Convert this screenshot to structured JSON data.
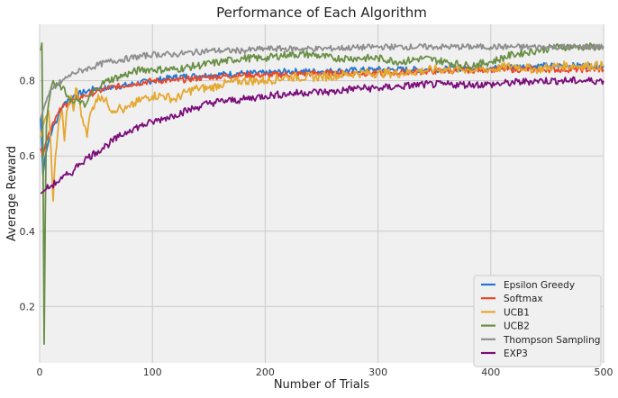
{
  "chart_data": {
    "type": "line",
    "title": "Performance of Each Algorithm",
    "xlabel": "Number of Trials",
    "ylabel": "Average Reward",
    "xlim": [
      0,
      500
    ],
    "ylim": [
      0.05,
      0.95
    ],
    "xticks": [
      0,
      100,
      200,
      300,
      400,
      500
    ],
    "yticks": [
      0.2,
      0.4,
      0.6,
      0.8
    ],
    "grid": true,
    "legend_position": "lower-right",
    "background_color": "#f0f0f0",
    "series": [
      {
        "name": "Epsilon Greedy",
        "color": "#1f77d4",
        "points": [
          [
            1,
            0.7
          ],
          [
            3,
            0.55
          ],
          [
            5,
            0.6
          ],
          [
            8,
            0.64
          ],
          [
            12,
            0.68
          ],
          [
            16,
            0.7
          ],
          [
            20,
            0.73
          ],
          [
            25,
            0.75
          ],
          [
            30,
            0.76
          ],
          [
            40,
            0.77
          ],
          [
            50,
            0.78
          ],
          [
            60,
            0.78
          ],
          [
            80,
            0.79
          ],
          [
            100,
            0.8
          ],
          [
            120,
            0.81
          ],
          [
            150,
            0.815
          ],
          [
            180,
            0.82
          ],
          [
            200,
            0.82
          ],
          [
            220,
            0.825
          ],
          [
            250,
            0.825
          ],
          [
            300,
            0.83
          ],
          [
            350,
            0.83
          ],
          [
            400,
            0.835
          ],
          [
            450,
            0.84
          ],
          [
            500,
            0.84
          ]
        ]
      },
      {
        "name": "Softmax",
        "color": "#e8472b",
        "points": [
          [
            1,
            0.62
          ],
          [
            3,
            0.6
          ],
          [
            5,
            0.63
          ],
          [
            8,
            0.66
          ],
          [
            12,
            0.69
          ],
          [
            16,
            0.71
          ],
          [
            20,
            0.73
          ],
          [
            25,
            0.74
          ],
          [
            30,
            0.75
          ],
          [
            40,
            0.76
          ],
          [
            50,
            0.77
          ],
          [
            60,
            0.78
          ],
          [
            80,
            0.79
          ],
          [
            100,
            0.8
          ],
          [
            120,
            0.8
          ],
          [
            150,
            0.81
          ],
          [
            180,
            0.815
          ],
          [
            200,
            0.815
          ],
          [
            250,
            0.82
          ],
          [
            300,
            0.82
          ],
          [
            350,
            0.825
          ],
          [
            400,
            0.83
          ],
          [
            450,
            0.83
          ],
          [
            500,
            0.83
          ]
        ]
      },
      {
        "name": "UCB1",
        "color": "#e5a830",
        "points": [
          [
            1,
            0.65
          ],
          [
            3,
            0.68
          ],
          [
            5,
            0.7
          ],
          [
            8,
            0.72
          ],
          [
            10,
            0.62
          ],
          [
            12,
            0.48
          ],
          [
            14,
            0.6
          ],
          [
            16,
            0.66
          ],
          [
            18,
            0.7
          ],
          [
            20,
            0.72
          ],
          [
            22,
            0.64
          ],
          [
            24,
            0.72
          ],
          [
            26,
            0.74
          ],
          [
            28,
            0.76
          ],
          [
            30,
            0.72
          ],
          [
            32,
            0.78
          ],
          [
            35,
            0.75
          ],
          [
            38,
            0.7
          ],
          [
            40,
            0.68
          ],
          [
            42,
            0.65
          ],
          [
            44,
            0.7
          ],
          [
            46,
            0.72
          ],
          [
            50,
            0.75
          ],
          [
            55,
            0.76
          ],
          [
            60,
            0.74
          ],
          [
            65,
            0.72
          ],
          [
            70,
            0.73
          ],
          [
            75,
            0.72
          ],
          [
            80,
            0.73
          ],
          [
            90,
            0.75
          ],
          [
            100,
            0.76
          ],
          [
            110,
            0.76
          ],
          [
            120,
            0.75
          ],
          [
            130,
            0.77
          ],
          [
            140,
            0.78
          ],
          [
            150,
            0.78
          ],
          [
            160,
            0.79
          ],
          [
            180,
            0.8
          ],
          [
            200,
            0.8
          ],
          [
            220,
            0.81
          ],
          [
            250,
            0.81
          ],
          [
            280,
            0.82
          ],
          [
            300,
            0.82
          ],
          [
            320,
            0.82
          ],
          [
            350,
            0.83
          ],
          [
            380,
            0.83
          ],
          [
            400,
            0.83
          ],
          [
            420,
            0.84
          ],
          [
            440,
            0.83
          ],
          [
            460,
            0.84
          ],
          [
            480,
            0.84
          ],
          [
            500,
            0.84
          ]
        ]
      },
      {
        "name": "UCB2",
        "color": "#6a8f46",
        "points": [
          [
            1,
            0.88
          ],
          [
            2,
            0.9
          ],
          [
            3,
            0.6
          ],
          [
            4,
            0.1
          ],
          [
            5,
            0.45
          ],
          [
            6,
            0.68
          ],
          [
            8,
            0.74
          ],
          [
            10,
            0.78
          ],
          [
            12,
            0.8
          ],
          [
            14,
            0.78
          ],
          [
            16,
            0.79
          ],
          [
            20,
            0.78
          ],
          [
            25,
            0.76
          ],
          [
            30,
            0.74
          ],
          [
            35,
            0.75
          ],
          [
            40,
            0.73
          ],
          [
            45,
            0.76
          ],
          [
            50,
            0.78
          ],
          [
            55,
            0.79
          ],
          [
            60,
            0.8
          ],
          [
            70,
            0.81
          ],
          [
            80,
            0.82
          ],
          [
            90,
            0.83
          ],
          [
            100,
            0.83
          ],
          [
            120,
            0.83
          ],
          [
            140,
            0.84
          ],
          [
            160,
            0.85
          ],
          [
            180,
            0.86
          ],
          [
            200,
            0.86
          ],
          [
            220,
            0.87
          ],
          [
            240,
            0.87
          ],
          [
            260,
            0.86
          ],
          [
            280,
            0.86
          ],
          [
            300,
            0.86
          ],
          [
            320,
            0.85
          ],
          [
            340,
            0.86
          ],
          [
            360,
            0.85
          ],
          [
            380,
            0.84
          ],
          [
            400,
            0.85
          ],
          [
            420,
            0.87
          ],
          [
            440,
            0.88
          ],
          [
            460,
            0.89
          ],
          [
            480,
            0.89
          ],
          [
            500,
            0.89
          ]
        ]
      },
      {
        "name": "Thompson Sampling",
        "color": "#8e8e8e",
        "points": [
          [
            1,
            0.7
          ],
          [
            3,
            0.72
          ],
          [
            5,
            0.74
          ],
          [
            8,
            0.76
          ],
          [
            12,
            0.78
          ],
          [
            16,
            0.79
          ],
          [
            20,
            0.8
          ],
          [
            25,
            0.81
          ],
          [
            30,
            0.82
          ],
          [
            40,
            0.83
          ],
          [
            50,
            0.84
          ],
          [
            60,
            0.85
          ],
          [
            80,
            0.86
          ],
          [
            100,
            0.87
          ],
          [
            120,
            0.87
          ],
          [
            150,
            0.88
          ],
          [
            180,
            0.88
          ],
          [
            200,
            0.885
          ],
          [
            250,
            0.885
          ],
          [
            300,
            0.89
          ],
          [
            350,
            0.89
          ],
          [
            400,
            0.89
          ],
          [
            450,
            0.89
          ],
          [
            500,
            0.89
          ]
        ]
      },
      {
        "name": "EXP3",
        "color": "#7b0d7a",
        "points": [
          [
            1,
            0.5
          ],
          [
            5,
            0.51
          ],
          [
            10,
            0.52
          ],
          [
            15,
            0.53
          ],
          [
            20,
            0.54
          ],
          [
            25,
            0.55
          ],
          [
            30,
            0.56
          ],
          [
            35,
            0.58
          ],
          [
            40,
            0.59
          ],
          [
            50,
            0.61
          ],
          [
            60,
            0.63
          ],
          [
            70,
            0.65
          ],
          [
            80,
            0.67
          ],
          [
            90,
            0.68
          ],
          [
            100,
            0.69
          ],
          [
            110,
            0.7
          ],
          [
            120,
            0.71
          ],
          [
            130,
            0.72
          ],
          [
            140,
            0.73
          ],
          [
            150,
            0.74
          ],
          [
            160,
            0.745
          ],
          [
            180,
            0.75
          ],
          [
            200,
            0.76
          ],
          [
            220,
            0.765
          ],
          [
            240,
            0.77
          ],
          [
            260,
            0.77
          ],
          [
            280,
            0.78
          ],
          [
            300,
            0.78
          ],
          [
            320,
            0.785
          ],
          [
            340,
            0.79
          ],
          [
            360,
            0.79
          ],
          [
            380,
            0.79
          ],
          [
            400,
            0.79
          ],
          [
            420,
            0.795
          ],
          [
            440,
            0.8
          ],
          [
            460,
            0.8
          ],
          [
            480,
            0.8
          ],
          [
            500,
            0.8
          ]
        ]
      }
    ]
  }
}
